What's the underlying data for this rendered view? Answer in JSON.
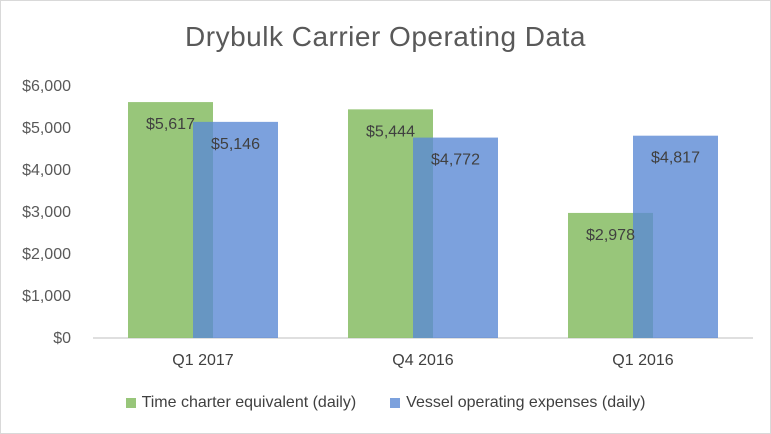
{
  "chart_data": {
    "type": "bar",
    "title": "Drybulk Carrier Operating Data",
    "categories": [
      "Q1 2017",
      "Q4 2016",
      "Q1 2016"
    ],
    "series": [
      {
        "name": "Time charter equivalent (daily)",
        "values": [
          5617,
          5444,
          2978
        ],
        "labels": [
          "$5,617",
          "$5,444",
          "$2,978"
        ],
        "color": "#8dc06b",
        "opacity": 0.9
      },
      {
        "name": "Vessel operating expenses (daily)",
        "values": [
          5146,
          4772,
          4817
        ],
        "labels": [
          "$5,146",
          "$4,772",
          "$4,817"
        ],
        "color": "#5b8ad5",
        "opacity": 0.8
      }
    ],
    "ylim": [
      0,
      6000
    ],
    "yticks": [
      0,
      1000,
      2000,
      3000,
      4000,
      5000,
      6000
    ],
    "ytick_labels": [
      "$0",
      "$1,000",
      "$2,000",
      "$3,000",
      "$4,000",
      "$5,000",
      "$6,000"
    ],
    "xlabel": "",
    "ylabel": "",
    "grid": false,
    "legend_position": "bottom"
  }
}
